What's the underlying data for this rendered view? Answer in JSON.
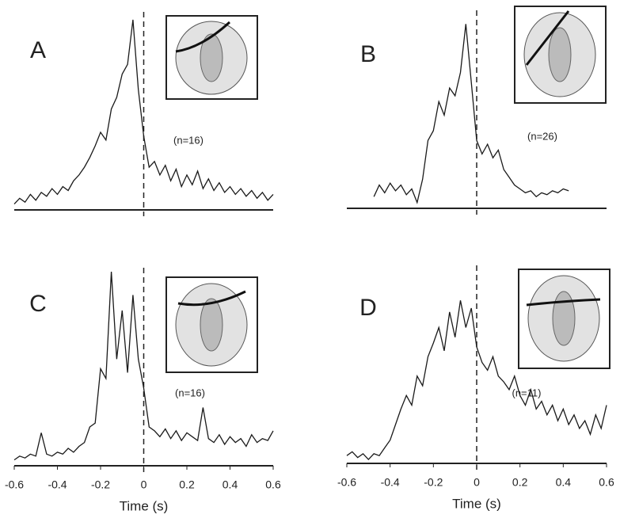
{
  "chart_data": [
    {
      "type": "line",
      "label": "A",
      "annotation": "(n=16)",
      "color": "#1a1a1a",
      "xlim": [
        -0.6,
        0.6
      ],
      "ylim": [
        0,
        100
      ],
      "x": [
        -0.6,
        -0.575,
        -0.55,
        -0.525,
        -0.5,
        -0.475,
        -0.45,
        -0.425,
        -0.4,
        -0.375,
        -0.35,
        -0.325,
        -0.3,
        -0.275,
        -0.25,
        -0.225,
        -0.2,
        -0.175,
        -0.15,
        -0.125,
        -0.1,
        -0.075,
        -0.05,
        -0.025,
        0,
        0.025,
        0.05,
        0.075,
        0.1,
        0.125,
        0.15,
        0.175,
        0.2,
        0.225,
        0.25,
        0.275,
        0.3,
        0.325,
        0.35,
        0.375,
        0.4,
        0.425,
        0.45,
        0.475,
        0.5,
        0.525,
        0.55,
        0.575,
        0.6
      ],
      "values": [
        3,
        6,
        4,
        8,
        5,
        9,
        7,
        11,
        8,
        12,
        10,
        15,
        18,
        22,
        27,
        33,
        40,
        36,
        52,
        58,
        70,
        75,
        98,
        62,
        38,
        22,
        25,
        18,
        23,
        15,
        21,
        12,
        18,
        13,
        20,
        11,
        16,
        10,
        14,
        9,
        12,
        8,
        11,
        7,
        10,
        6,
        9,
        5,
        8
      ]
    },
    {
      "type": "line",
      "label": "B",
      "annotation": "(n=26)",
      "color": "#1a1a1a",
      "xlim": [
        -0.6,
        0.6
      ],
      "ylim": [
        0,
        100
      ],
      "x": [
        -0.475,
        -0.45,
        -0.425,
        -0.4,
        -0.375,
        -0.35,
        -0.325,
        -0.3,
        -0.275,
        -0.25,
        -0.225,
        -0.2,
        -0.175,
        -0.15,
        -0.125,
        -0.1,
        -0.075,
        -0.05,
        -0.025,
        0,
        0.025,
        0.05,
        0.075,
        0.1,
        0.125,
        0.15,
        0.175,
        0.2,
        0.225,
        0.25,
        0.275,
        0.3,
        0.325,
        0.35,
        0.375,
        0.4,
        0.425
      ],
      "values": [
        6,
        12,
        8,
        13,
        9,
        12,
        7,
        10,
        3,
        15,
        35,
        40,
        55,
        48,
        62,
        58,
        70,
        95,
        65,
        35,
        28,
        33,
        26,
        30,
        20,
        16,
        12,
        10,
        8,
        9,
        6,
        8,
        7,
        9,
        8,
        10,
        9
      ]
    },
    {
      "type": "line",
      "label": "C",
      "annotation": "(n=16)",
      "color": "#1a1a1a",
      "xlim": [
        -0.6,
        0.6
      ],
      "ylim": [
        0,
        100
      ],
      "xticks": [
        -0.6,
        -0.4,
        -0.2,
        0,
        0.2,
        0.4,
        0.6
      ],
      "xlabel": "Time (s)",
      "x": [
        -0.6,
        -0.575,
        -0.55,
        -0.525,
        -0.5,
        -0.475,
        -0.45,
        -0.425,
        -0.4,
        -0.375,
        -0.35,
        -0.325,
        -0.3,
        -0.275,
        -0.25,
        -0.225,
        -0.2,
        -0.175,
        -0.15,
        -0.125,
        -0.1,
        -0.075,
        -0.05,
        -0.025,
        0,
        0.025,
        0.05,
        0.075,
        0.1,
        0.125,
        0.15,
        0.175,
        0.2,
        0.225,
        0.25,
        0.275,
        0.3,
        0.325,
        0.35,
        0.375,
        0.4,
        0.425,
        0.45,
        0.475,
        0.5,
        0.525,
        0.55,
        0.575,
        0.6
      ],
      "values": [
        3,
        5,
        4,
        6,
        5,
        17,
        6,
        5,
        7,
        6,
        9,
        7,
        10,
        12,
        20,
        22,
        50,
        45,
        100,
        55,
        80,
        48,
        88,
        55,
        40,
        20,
        18,
        15,
        19,
        14,
        18,
        13,
        17,
        15,
        13,
        30,
        14,
        12,
        16,
        11,
        15,
        12,
        14,
        10,
        16,
        12,
        14,
        13,
        18
      ]
    },
    {
      "type": "line",
      "label": "D",
      "annotation": "(n=11)",
      "color": "#1a1a1a",
      "xlim": [
        -0.6,
        0.6
      ],
      "ylim": [
        0,
        100
      ],
      "xticks": [
        -0.6,
        -0.4,
        -0.2,
        0,
        0.2,
        0.4,
        0.6
      ],
      "xlabel": "Time (s)",
      "x": [
        -0.6,
        -0.575,
        -0.55,
        -0.525,
        -0.5,
        -0.475,
        -0.45,
        -0.425,
        -0.4,
        -0.375,
        -0.35,
        -0.325,
        -0.3,
        -0.275,
        -0.25,
        -0.225,
        -0.2,
        -0.175,
        -0.15,
        -0.125,
        -0.1,
        -0.075,
        -0.05,
        -0.025,
        0,
        0.025,
        0.05,
        0.075,
        0.1,
        0.125,
        0.15,
        0.175,
        0.2,
        0.225,
        0.25,
        0.275,
        0.3,
        0.325,
        0.35,
        0.375,
        0.4,
        0.425,
        0.45,
        0.475,
        0.5,
        0.525,
        0.55,
        0.575,
        0.6
      ],
      "values": [
        4,
        6,
        3,
        5,
        2,
        5,
        4,
        8,
        12,
        20,
        28,
        35,
        30,
        45,
        40,
        55,
        62,
        70,
        58,
        78,
        65,
        84,
        70,
        80,
        60,
        52,
        48,
        55,
        45,
        42,
        38,
        45,
        35,
        30,
        38,
        28,
        32,
        25,
        30,
        22,
        28,
        20,
        25,
        18,
        22,
        15,
        25,
        18,
        30
      ]
    }
  ]
}
